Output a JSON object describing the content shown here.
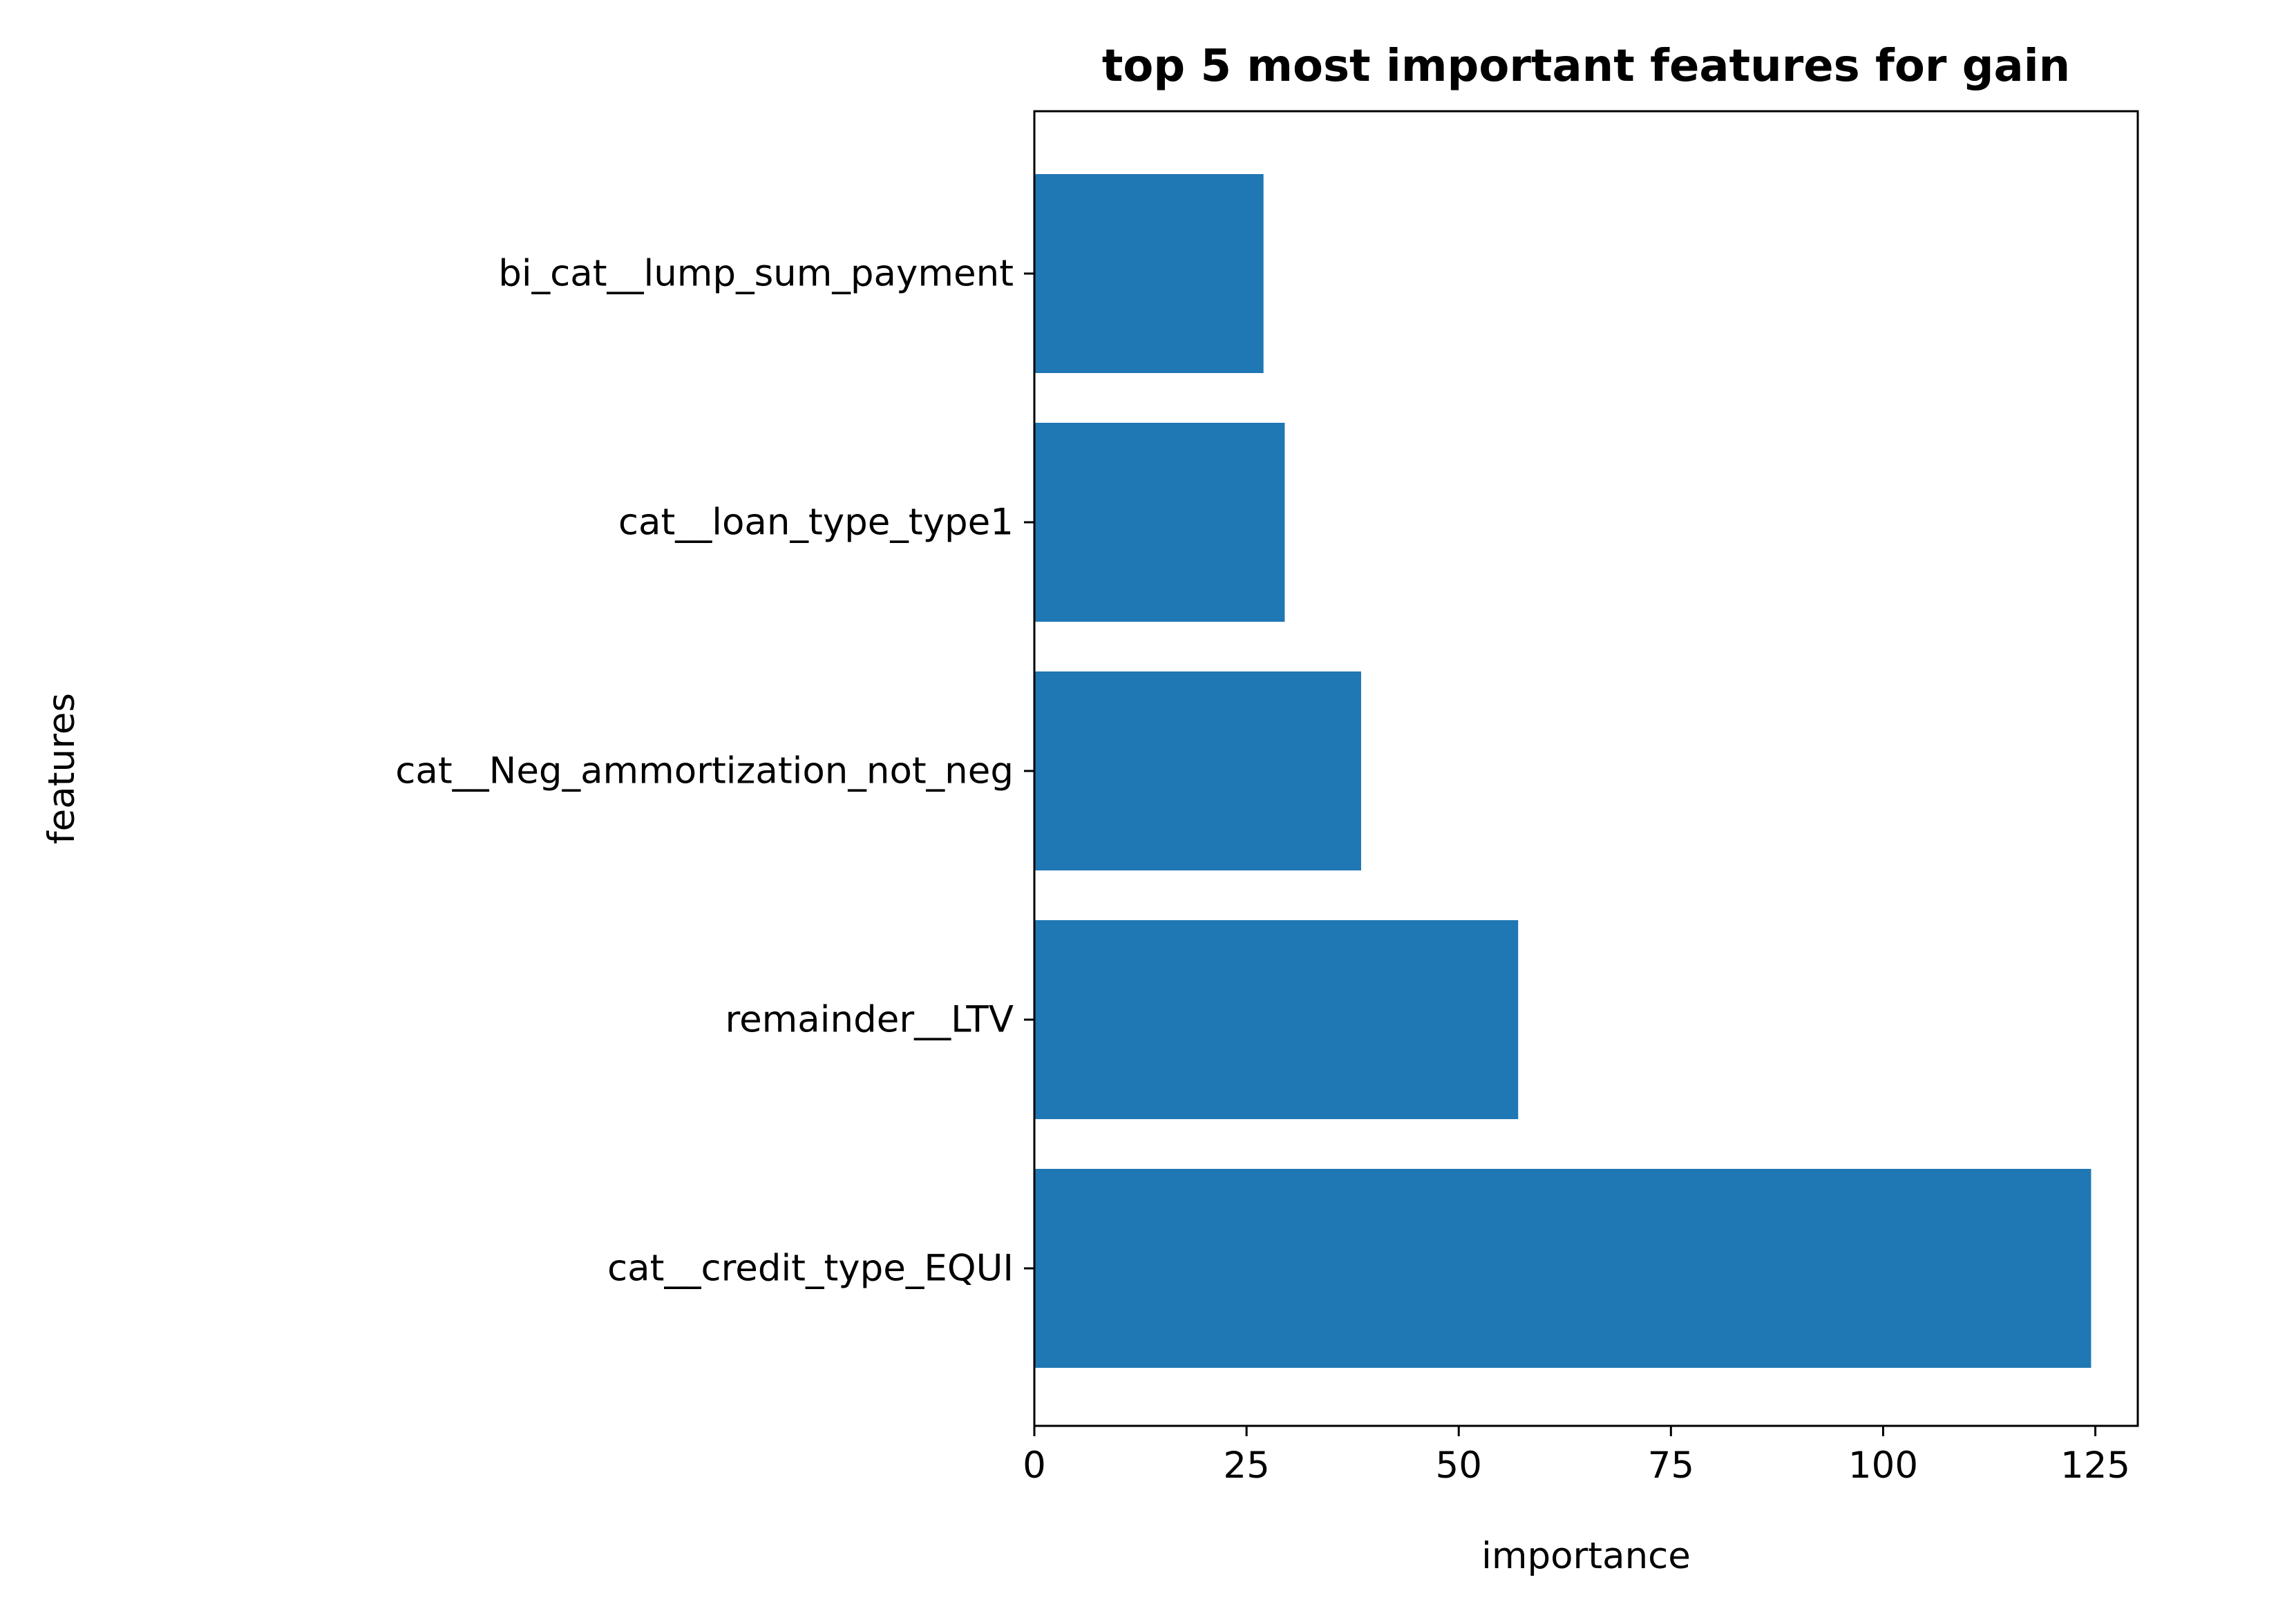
{
  "chart_data": {
    "type": "bar",
    "orientation": "horizontal",
    "title": "top 5 most important features for gain",
    "xlabel": "importance",
    "ylabel": "features",
    "categories": [
      "bi_cat__lump_sum_payment",
      "cat__loan_type_type1",
      "cat__Neg_ammortization_not_neg",
      "remainder__LTV",
      "cat__credit_type_EQUI"
    ],
    "values": [
      27,
      29.5,
      38.5,
      57,
      124.5
    ],
    "xlim": [
      0,
      130
    ],
    "xticks": [
      0,
      25,
      50,
      75,
      100,
      125
    ],
    "xtick_labels": [
      "0",
      "25",
      "50",
      "75",
      "100",
      "125"
    ],
    "bar_color": "#1f77b4",
    "grid": false
  }
}
